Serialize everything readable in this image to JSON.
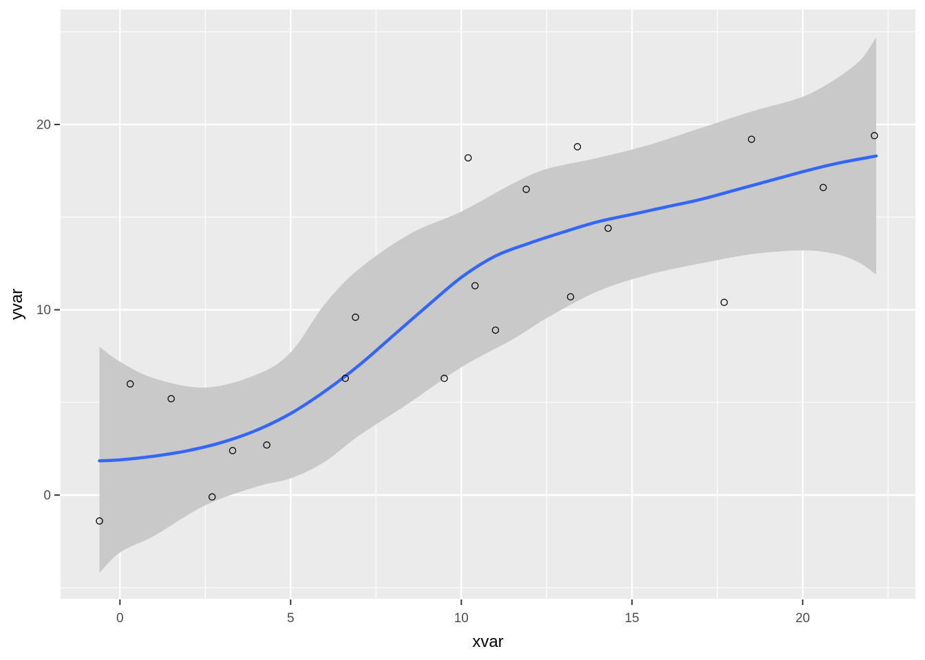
{
  "figure": {
    "background": "#FFFFFF",
    "panel_background": "#EBEBEB",
    "grid_major_color": "#FFFFFF",
    "grid_minor_color": "#FFFFFF",
    "tick_mark_color": "#333333",
    "tick_label_color": "#4D4D4D",
    "axis_title_color": "#000000",
    "point_stroke_color": "#000000"
  },
  "chart_data": {
    "type": "scatter",
    "title": "",
    "xlabel": "xvar",
    "ylabel": "yvar",
    "legend_position": "none",
    "grid": "on",
    "x_domain": [
      -1.74,
      23.3
    ],
    "y_domain": [
      -5.6,
      26.2
    ],
    "x_ticks": [
      0,
      5,
      10,
      15,
      20
    ],
    "y_ticks": [
      0,
      10,
      20
    ],
    "x_minor_ticks": [
      2.5,
      7.5,
      12.5,
      17.5,
      22.5
    ],
    "y_minor_ticks": [
      -5,
      5,
      15,
      25
    ],
    "points": [
      {
        "x": -0.6,
        "y": -1.4
      },
      {
        "x": 0.3,
        "y": 6.0
      },
      {
        "x": 1.5,
        "y": 5.2
      },
      {
        "x": 2.7,
        "y": -0.1
      },
      {
        "x": 3.3,
        "y": 2.4
      },
      {
        "x": 4.3,
        "y": 2.7
      },
      {
        "x": 6.6,
        "y": 6.3
      },
      {
        "x": 6.9,
        "y": 9.6
      },
      {
        "x": 9.5,
        "y": 6.3
      },
      {
        "x": 10.2,
        "y": 18.2
      },
      {
        "x": 10.4,
        "y": 11.3
      },
      {
        "x": 11.0,
        "y": 8.9
      },
      {
        "x": 11.9,
        "y": 16.5
      },
      {
        "x": 13.2,
        "y": 10.7
      },
      {
        "x": 13.4,
        "y": 18.8
      },
      {
        "x": 14.3,
        "y": 14.4
      },
      {
        "x": 17.7,
        "y": 10.4
      },
      {
        "x": 18.5,
        "y": 19.2
      },
      {
        "x": 20.6,
        "y": 16.6
      },
      {
        "x": 22.1,
        "y": 19.4
      }
    ],
    "smooth_line": {
      "method": "loess",
      "color": "#3366FF",
      "width": 4.5,
      "x": [
        -0.6,
        0,
        1,
        2,
        3,
        4,
        5,
        6,
        7,
        8,
        9,
        10,
        11,
        12,
        13,
        14,
        15,
        16,
        17,
        18,
        19,
        20,
        21,
        22.15
      ],
      "y": [
        1.85,
        1.9,
        2.1,
        2.4,
        2.85,
        3.5,
        4.4,
        5.6,
        7.0,
        8.6,
        10.2,
        11.75,
        12.9,
        13.6,
        14.2,
        14.75,
        15.15,
        15.55,
        15.95,
        16.45,
        16.95,
        17.45,
        17.9,
        18.3
      ]
    },
    "confidence_band": {
      "fill": "#C9C9C9",
      "x": [
        -0.6,
        0,
        1,
        2.5,
        4,
        5,
        6,
        7,
        8.5,
        10,
        11.5,
        12.5,
        14,
        15.5,
        17,
        18.5,
        20,
        21,
        21.7,
        22.15
      ],
      "upper": [
        8.0,
        7.2,
        6.3,
        5.8,
        6.5,
        7.7,
        10.3,
        12.2,
        14.1,
        15.3,
        16.8,
        17.6,
        18.2,
        18.9,
        19.8,
        20.7,
        21.5,
        22.5,
        23.5,
        24.7
      ],
      "lower": [
        -4.2,
        -3.1,
        -2.2,
        -0.55,
        0.45,
        0.9,
        1.8,
        3.2,
        5.0,
        6.9,
        8.4,
        9.55,
        11.0,
        11.9,
        12.5,
        13.0,
        13.2,
        13.0,
        12.5,
        11.9
      ]
    }
  }
}
